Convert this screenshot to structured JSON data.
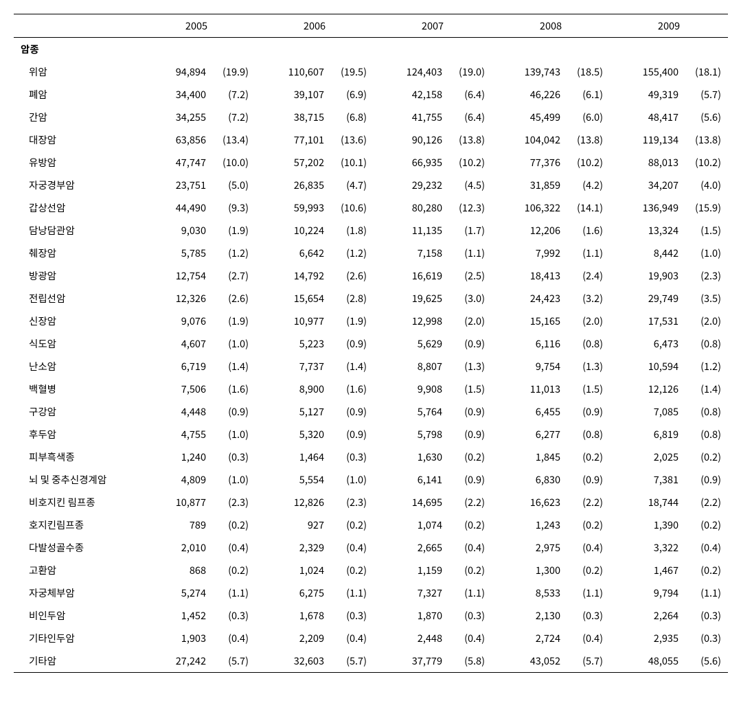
{
  "years": [
    "2005",
    "2006",
    "2007",
    "2008",
    "2009"
  ],
  "section": "암종",
  "rows": [
    {
      "label": "위암",
      "v": [
        [
          "94,894",
          "(19.9)"
        ],
        [
          "110,607",
          "(19.5)"
        ],
        [
          "124,403",
          "(19.0)"
        ],
        [
          "139,743",
          "(18.5)"
        ],
        [
          "155,400",
          "(18.1)"
        ]
      ]
    },
    {
      "label": "폐암",
      "v": [
        [
          "34,400",
          "(7.2)"
        ],
        [
          "39,107",
          "(6.9)"
        ],
        [
          "42,158",
          "(6.4)"
        ],
        [
          "46,226",
          "(6.1)"
        ],
        [
          "49,319",
          "(5.7)"
        ]
      ]
    },
    {
      "label": "간암",
      "v": [
        [
          "34,255",
          "(7.2)"
        ],
        [
          "38,715",
          "(6.8)"
        ],
        [
          "41,755",
          "(6.4)"
        ],
        [
          "45,499",
          "(6.0)"
        ],
        [
          "48,417",
          "(5.6)"
        ]
      ]
    },
    {
      "label": "대장암",
      "v": [
        [
          "63,856",
          "(13.4)"
        ],
        [
          "77,101",
          "(13.6)"
        ],
        [
          "90,126",
          "(13.8)"
        ],
        [
          "104,042",
          "(13.8)"
        ],
        [
          "119,134",
          "(13.8)"
        ]
      ]
    },
    {
      "label": "유방암",
      "v": [
        [
          "47,747",
          "(10.0)"
        ],
        [
          "57,202",
          "(10.1)"
        ],
        [
          "66,935",
          "(10.2)"
        ],
        [
          "77,376",
          "(10.2)"
        ],
        [
          "88,013",
          "(10.2)"
        ]
      ]
    },
    {
      "label": "자궁경부암",
      "v": [
        [
          "23,751",
          "(5.0)"
        ],
        [
          "26,835",
          "(4.7)"
        ],
        [
          "29,232",
          "(4.5)"
        ],
        [
          "31,859",
          "(4.2)"
        ],
        [
          "34,207",
          "(4.0)"
        ]
      ]
    },
    {
      "label": "갑상선암",
      "v": [
        [
          "44,490",
          "(9.3)"
        ],
        [
          "59,993",
          "(10.6)"
        ],
        [
          "80,280",
          "(12.3)"
        ],
        [
          "106,322",
          "(14.1)"
        ],
        [
          "136,949",
          "(15.9)"
        ]
      ]
    },
    {
      "label": "담낭담관암",
      "v": [
        [
          "9,030",
          "(1.9)"
        ],
        [
          "10,224",
          "(1.8)"
        ],
        [
          "11,135",
          "(1.7)"
        ],
        [
          "12,206",
          "(1.6)"
        ],
        [
          "13,324",
          "(1.5)"
        ]
      ]
    },
    {
      "label": "췌장암",
      "v": [
        [
          "5,785",
          "(1.2)"
        ],
        [
          "6,642",
          "(1.2)"
        ],
        [
          "7,158",
          "(1.1)"
        ],
        [
          "7,992",
          "(1.1)"
        ],
        [
          "8,442",
          "(1.0)"
        ]
      ]
    },
    {
      "label": "방광암",
      "v": [
        [
          "12,754",
          "(2.7)"
        ],
        [
          "14,792",
          "(2.6)"
        ],
        [
          "16,619",
          "(2.5)"
        ],
        [
          "18,413",
          "(2.4)"
        ],
        [
          "19,903",
          "(2.3)"
        ]
      ]
    },
    {
      "label": "전립선암",
      "v": [
        [
          "12,326",
          "(2.6)"
        ],
        [
          "15,654",
          "(2.8)"
        ],
        [
          "19,625",
          "(3.0)"
        ],
        [
          "24,423",
          "(3.2)"
        ],
        [
          "29,749",
          "(3.5)"
        ]
      ]
    },
    {
      "label": "신장암",
      "v": [
        [
          "9,076",
          "(1.9)"
        ],
        [
          "10,977",
          "(1.9)"
        ],
        [
          "12,998",
          "(2.0)"
        ],
        [
          "15,165",
          "(2.0)"
        ],
        [
          "17,531",
          "(2.0)"
        ]
      ]
    },
    {
      "label": "식도암",
      "v": [
        [
          "4,607",
          "(1.0)"
        ],
        [
          "5,223",
          "(0.9)"
        ],
        [
          "5,629",
          "(0.9)"
        ],
        [
          "6,116",
          "(0.8)"
        ],
        [
          "6,473",
          "(0.8)"
        ]
      ]
    },
    {
      "label": "난소암",
      "v": [
        [
          "6,719",
          "(1.4)"
        ],
        [
          "7,737",
          "(1.4)"
        ],
        [
          "8,807",
          "(1.3)"
        ],
        [
          "9,754",
          "(1.3)"
        ],
        [
          "10,594",
          "(1.2)"
        ]
      ]
    },
    {
      "label": "백혈병",
      "v": [
        [
          "7,506",
          "(1.6)"
        ],
        [
          "8,900",
          "(1.6)"
        ],
        [
          "9,908",
          "(1.5)"
        ],
        [
          "11,013",
          "(1.5)"
        ],
        [
          "12,126",
          "(1.4)"
        ]
      ]
    },
    {
      "label": "구강암",
      "v": [
        [
          "4,448",
          "(0.9)"
        ],
        [
          "5,127",
          "(0.9)"
        ],
        [
          "5,764",
          "(0.9)"
        ],
        [
          "6,455",
          "(0.9)"
        ],
        [
          "7,085",
          "(0.8)"
        ]
      ]
    },
    {
      "label": "후두암",
      "v": [
        [
          "4,755",
          "(1.0)"
        ],
        [
          "5,320",
          "(0.9)"
        ],
        [
          "5,798",
          "(0.9)"
        ],
        [
          "6,277",
          "(0.8)"
        ],
        [
          "6,819",
          "(0.8)"
        ]
      ]
    },
    {
      "label": "피부흑색종",
      "v": [
        [
          "1,240",
          "(0.3)"
        ],
        [
          "1,464",
          "(0.3)"
        ],
        [
          "1,630",
          "(0.2)"
        ],
        [
          "1,845",
          "(0.2)"
        ],
        [
          "2,025",
          "(0.2)"
        ]
      ]
    },
    {
      "label": "뇌 및 중추신경계암",
      "v": [
        [
          "4,809",
          "(1.0)"
        ],
        [
          "5,554",
          "(1.0)"
        ],
        [
          "6,141",
          "(0.9)"
        ],
        [
          "6,830",
          "(0.9)"
        ],
        [
          "7,381",
          "(0.9)"
        ]
      ]
    },
    {
      "label": "비호지킨 림프종",
      "v": [
        [
          "10,877",
          "(2.3)"
        ],
        [
          "12,826",
          "(2.3)"
        ],
        [
          "14,695",
          "(2.2)"
        ],
        [
          "16,623",
          "(2.2)"
        ],
        [
          "18,744",
          "(2.2)"
        ]
      ]
    },
    {
      "label": "호지킨림프종",
      "v": [
        [
          "789",
          "(0.2)"
        ],
        [
          "927",
          "(0.2)"
        ],
        [
          "1,074",
          "(0.2)"
        ],
        [
          "1,243",
          "(0.2)"
        ],
        [
          "1,390",
          "(0.2)"
        ]
      ]
    },
    {
      "label": "다발성골수종",
      "v": [
        [
          "2,010",
          "(0.4)"
        ],
        [
          "2,329",
          "(0.4)"
        ],
        [
          "2,665",
          "(0.4)"
        ],
        [
          "2,975",
          "(0.4)"
        ],
        [
          "3,322",
          "(0.4)"
        ]
      ]
    },
    {
      "label": "고환암",
      "v": [
        [
          "868",
          "(0.2)"
        ],
        [
          "1,024",
          "(0.2)"
        ],
        [
          "1,159",
          "(0.2)"
        ],
        [
          "1,300",
          "(0.2)"
        ],
        [
          "1,467",
          "(0.2)"
        ]
      ]
    },
    {
      "label": "자궁체부암",
      "v": [
        [
          "5,274",
          "(1.1)"
        ],
        [
          "6,275",
          "(1.1)"
        ],
        [
          "7,327",
          "(1.1)"
        ],
        [
          "8,533",
          "(1.1)"
        ],
        [
          "9,794",
          "(1.1)"
        ]
      ]
    },
    {
      "label": "비인두암",
      "v": [
        [
          "1,452",
          "(0.3)"
        ],
        [
          "1,678",
          "(0.3)"
        ],
        [
          "1,870",
          "(0.3)"
        ],
        [
          "2,130",
          "(0.3)"
        ],
        [
          "2,264",
          "(0.3)"
        ]
      ]
    },
    {
      "label": "기타인두암",
      "v": [
        [
          "1,903",
          "(0.4)"
        ],
        [
          "2,209",
          "(0.4)"
        ],
        [
          "2,448",
          "(0.4)"
        ],
        [
          "2,724",
          "(0.4)"
        ],
        [
          "2,935",
          "(0.3)"
        ]
      ]
    },
    {
      "label": "기타암",
      "v": [
        [
          "27,242",
          "(5.7)"
        ],
        [
          "32,603",
          "(5.7)"
        ],
        [
          "37,779",
          "(5.8)"
        ],
        [
          "43,052",
          "(5.7)"
        ],
        [
          "48,055",
          "(5.6)"
        ]
      ]
    }
  ]
}
